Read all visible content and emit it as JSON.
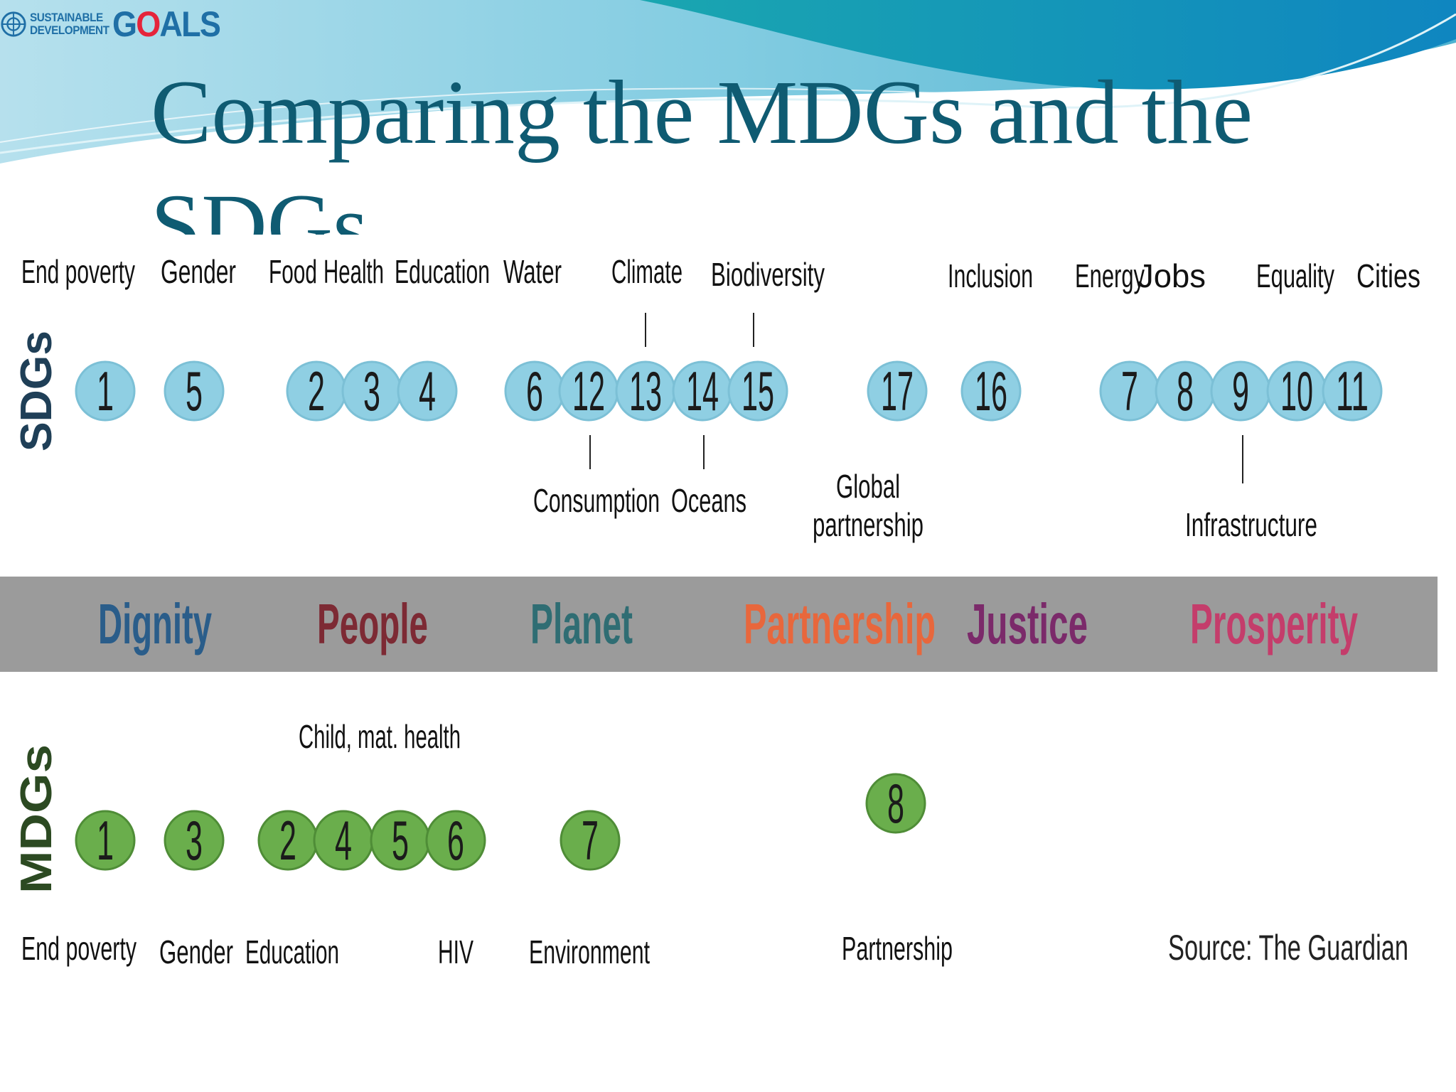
{
  "logo": {
    "line1": "SUSTAINABLE",
    "line2": "DEVELOPMENT",
    "word": "GOALS"
  },
  "title": "Comparing the MDGs and the SDGs",
  "sdg_row": {
    "axis_label": "SDGs",
    "circle_color": "#8fcfe3",
    "circles": [
      "1",
      "5",
      "2",
      "3",
      "4",
      "6",
      "12",
      "13",
      "14",
      "15",
      "17",
      "16",
      "7",
      "8",
      "9",
      "10",
      "11"
    ],
    "top_labels": [
      "End poverty",
      "Gender",
      "Food",
      "Health",
      "Education",
      "Water",
      "Climate",
      "Biodiversity",
      "Inclusion",
      "Energy",
      "Jobs",
      "Equality",
      "Cities"
    ],
    "bottom_labels": [
      "Consumption",
      "Oceans",
      "Global",
      "partnership",
      "Infrastructure"
    ]
  },
  "themes": {
    "band_color": "#9b9b9b",
    "items": [
      {
        "label": "Dignity",
        "color": "#2a5d8a"
      },
      {
        "label": "People",
        "color": "#7d2a34"
      },
      {
        "label": "Planet",
        "color": "#2f6d73"
      },
      {
        "label": "Partnership",
        "color": "#e8673c"
      },
      {
        "label": "Justice",
        "color": "#7b2a6a"
      },
      {
        "label": "Prosperity",
        "color": "#c43d6b"
      }
    ]
  },
  "mdg_row": {
    "axis_label": "MDGs",
    "circle_color": "#6aae4c",
    "circles": [
      "1",
      "3",
      "2",
      "4",
      "5",
      "6",
      "7",
      "8"
    ],
    "top_labels": [
      "Child, mat. health"
    ],
    "bottom_labels": [
      "End poverty",
      "Gender",
      "Education",
      "HIV",
      "Environment",
      "Partnership"
    ]
  },
  "source": "Source: The Guardian"
}
